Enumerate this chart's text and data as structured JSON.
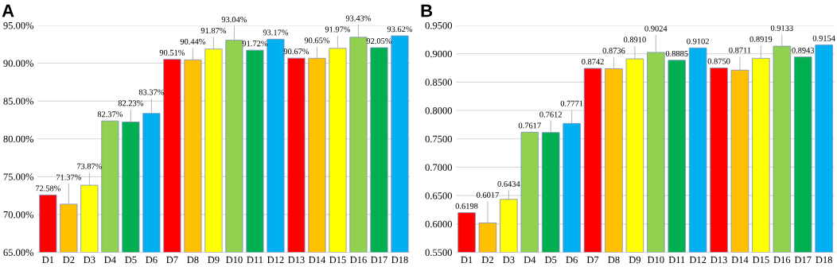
{
  "chart_data": [
    {
      "type": "bar",
      "title": "A",
      "categories": [
        "D1",
        "D2",
        "D3",
        "D4",
        "D5",
        "D6",
        "D7",
        "D8",
        "D9",
        "D10",
        "D11",
        "D12",
        "D13",
        "D14",
        "D15",
        "D16",
        "D17",
        "D18"
      ],
      "values": [
        72.58,
        71.37,
        73.87,
        82.37,
        82.23,
        83.37,
        90.51,
        90.44,
        91.87,
        93.04,
        91.72,
        93.17,
        90.67,
        90.65,
        91.97,
        93.43,
        92.05,
        93.62
      ],
      "value_labels": [
        "72.58%",
        "71.37%",
        "73.87%",
        "82.37%",
        "82.23%",
        "83.37%",
        "90.51%",
        "90.44%",
        "91.87%",
        "93.04%",
        "91.72%",
        "93.17%",
        "90.67%",
        "90.65%",
        "91.97%",
        "93.43%",
        "92.05%",
        "93.62%"
      ],
      "colors": [
        "#ff0000",
        "#ffc000",
        "#ffff00",
        "#92d050",
        "#00b050",
        "#00b0f0",
        "#ff0000",
        "#ffc000",
        "#ffff00",
        "#92d050",
        "#00b050",
        "#00b0f0",
        "#ff0000",
        "#ffc000",
        "#ffff00",
        "#92d050",
        "#00b050",
        "#00b0f0"
      ],
      "ylim": [
        65,
        95
      ],
      "yticks": [
        {
          "value": 65,
          "label": "65.00%"
        },
        {
          "value": 70,
          "label": "70.00%"
        },
        {
          "value": 75,
          "label": "75.00%"
        },
        {
          "value": 80,
          "label": "80.00%"
        },
        {
          "value": 85,
          "label": "85.00%"
        },
        {
          "value": 90,
          "label": "90.00%"
        },
        {
          "value": 95,
          "label": "95.00%"
        }
      ],
      "grid": "y"
    },
    {
      "type": "bar",
      "title": "B",
      "categories": [
        "D1",
        "D2",
        "D3",
        "D4",
        "D5",
        "D6",
        "D7",
        "D8",
        "D9",
        "D10",
        "D11",
        "D12",
        "D13",
        "D14",
        "D15",
        "D16",
        "D17",
        "D18"
      ],
      "values": [
        0.6198,
        0.6017,
        0.6434,
        0.7617,
        0.7612,
        0.7771,
        0.8742,
        0.8736,
        0.891,
        0.9024,
        0.8885,
        0.9102,
        0.875,
        0.8711,
        0.8919,
        0.9133,
        0.8943,
        0.9154
      ],
      "value_labels": [
        "0.6198",
        "0.6017",
        "0.6434",
        "0.7617",
        "0.7612",
        "0.7771",
        "0.8742",
        "0.8736",
        "0.8910",
        "0.9024",
        "0.8885",
        "0.9102",
        "0.8750",
        "0.8711",
        "0.8919",
        "0.9133",
        "0.8943",
        "0.9154"
      ],
      "colors": [
        "#ff0000",
        "#ffc000",
        "#ffff00",
        "#92d050",
        "#00b050",
        "#00b0f0",
        "#ff0000",
        "#ffc000",
        "#ffff00",
        "#92d050",
        "#00b050",
        "#00b0f0",
        "#ff0000",
        "#ffc000",
        "#ffff00",
        "#92d050",
        "#00b050",
        "#00b0f0"
      ],
      "ylim": [
        0.55,
        0.95
      ],
      "yticks": [
        {
          "value": 0.55,
          "label": "0.5500"
        },
        {
          "value": 0.6,
          "label": "0.6000"
        },
        {
          "value": 0.65,
          "label": "0.6500"
        },
        {
          "value": 0.7,
          "label": "0.7000"
        },
        {
          "value": 0.75,
          "label": "0.7500"
        },
        {
          "value": 0.8,
          "label": "0.8000"
        },
        {
          "value": 0.85,
          "label": "0.8500"
        },
        {
          "value": 0.9,
          "label": "0.9000"
        },
        {
          "value": 0.95,
          "label": "0.9500"
        }
      ],
      "grid": "y"
    }
  ]
}
